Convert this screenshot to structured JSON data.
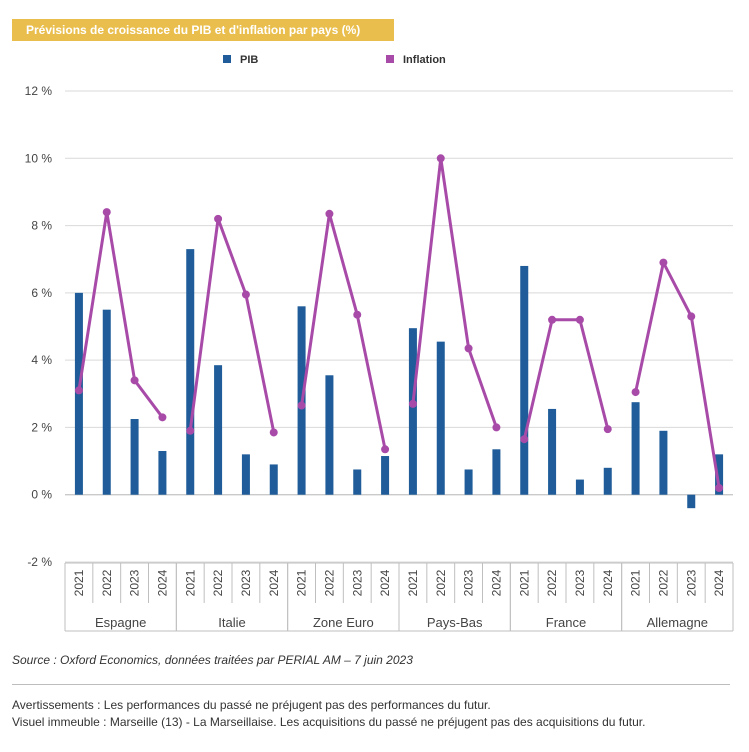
{
  "chart_data": {
    "type": "bar",
    "title": "Prévisions de croissance du PIB et d'inflation par pays (%)",
    "groups": [
      "Espagne",
      "Italie",
      "Zone Euro",
      "Pays-Bas",
      "France",
      "Allemagne"
    ],
    "years": [
      "2021",
      "2022",
      "2023",
      "2024"
    ],
    "ylim": [
      -2,
      12
    ],
    "yticks": [
      -2,
      0,
      2,
      4,
      6,
      8,
      10,
      12
    ],
    "ytick_labels": [
      "-2 %",
      "0 %",
      "2 %",
      "4 %",
      "6 %",
      "8 %",
      "10 %",
      "12 %"
    ],
    "legend_position": "top",
    "series": [
      {
        "name": "PIB",
        "type": "bar",
        "color": "#1F5C99",
        "values": [
          6.0,
          5.5,
          2.25,
          1.3,
          7.3,
          3.85,
          1.2,
          0.9,
          5.6,
          3.55,
          0.75,
          1.15,
          4.95,
          4.55,
          0.75,
          1.35,
          6.8,
          2.55,
          0.45,
          0.8,
          2.75,
          1.9,
          -0.4,
          1.2
        ]
      },
      {
        "name": "Inflation",
        "type": "line",
        "color": "#A84BA8",
        "values": [
          3.1,
          8.4,
          3.4,
          2.3,
          1.9,
          8.2,
          5.95,
          1.85,
          2.65,
          8.35,
          5.35,
          1.35,
          2.7,
          10.0,
          4.35,
          2.0,
          1.65,
          5.2,
          5.2,
          1.95,
          3.05,
          6.9,
          5.3,
          0.2
        ]
      }
    ]
  },
  "source_text": "Source : Oxford Economics, données traitées par PERIAL AM – 7 juin 2023",
  "notes": [
    "Avertissements : Les performances du passé ne préjugent pas des performances du futur.",
    "Visuel immeuble : Marseille (13) - La Marseillaise. Les acquisitions du passé ne préjugent pas des acquisitions du futur."
  ]
}
